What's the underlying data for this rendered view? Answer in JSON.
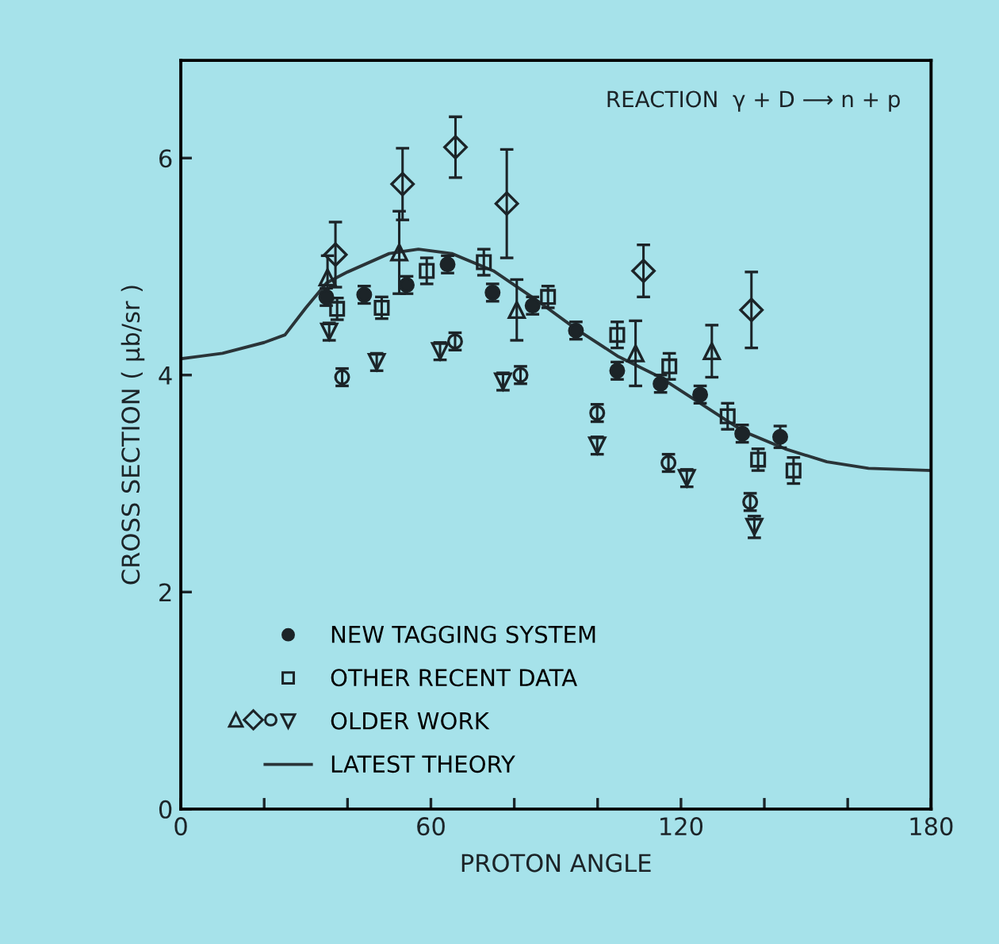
{
  "chart_data": {
    "type": "scatter",
    "xlabel": "PROTON ANGLE",
    "ylabel": "CROSS SECTION ( μb/sr )",
    "xlim": [
      0,
      180
    ],
    "ylim": [
      0,
      6.9
    ],
    "xticks": [
      0,
      {
        "value": 20,
        "label": null
      },
      {
        "value": 40,
        "label": null
      },
      60,
      {
        "value": 80,
        "label": null
      },
      {
        "value": 100,
        "label": null
      },
      120,
      {
        "value": 140,
        "label": null
      },
      {
        "value": 160,
        "label": null
      },
      180
    ],
    "yticks": [
      0,
      2,
      4,
      6
    ],
    "grid": false,
    "legend": "bottom left",
    "annotations": [
      "REACTION  γ + D ⟶ n + p"
    ],
    "series": [
      {
        "name": "NEW TAGGING SYSTEM",
        "marker": "circle",
        "color": "#1c2428",
        "x": [
          34.9,
          44.0,
          54.2,
          64.0,
          74.8,
          84.4,
          94.8,
          104.7,
          115.1,
          124.6,
          134.7,
          143.8
        ],
        "values": [
          4.72,
          4.74,
          4.83,
          5.02,
          4.76,
          4.64,
          4.41,
          4.04,
          3.92,
          3.82,
          3.46,
          3.43
        ],
        "errors": [
          0.08,
          0.08,
          0.08,
          0.08,
          0.08,
          0.08,
          0.08,
          0.08,
          0.08,
          0.08,
          0.08,
          0.1
        ]
      },
      {
        "name": "OTHER RECENT DATA",
        "marker": "square",
        "color": "#1c2428",
        "x": [
          37.5,
          48.2,
          59.0,
          72.7,
          88.1,
          104.7,
          117.2,
          131.2,
          138.5,
          147.0
        ],
        "values": [
          4.61,
          4.62,
          4.96,
          5.04,
          4.72,
          4.37,
          4.08,
          3.62,
          3.22,
          3.12
        ],
        "errors": [
          0.1,
          0.1,
          0.12,
          0.12,
          0.1,
          0.12,
          0.12,
          0.12,
          0.1,
          0.12
        ]
      },
      {
        "marker": "triangle",
        "color": "#1c2428",
        "x": [
          35.2,
          52.4,
          80.6,
          109.1,
          127.4
        ],
        "values": [
          4.9,
          5.13,
          4.6,
          4.2,
          4.22
        ],
        "errors": [
          0.2,
          0.38,
          0.28,
          0.3,
          0.24
        ]
      },
      {
        "marker": "diamond",
        "color": "#1c2428",
        "x": [
          37.1,
          53.2,
          65.9,
          78.2,
          111.0,
          136.9
        ],
        "values": [
          5.11,
          5.76,
          6.1,
          5.58,
          4.96,
          4.6
        ],
        "errors": [
          0.3,
          0.33,
          0.28,
          0.5,
          0.24,
          0.35
        ]
      },
      {
        "marker": "circle",
        "color": "#1c2428",
        "x": [
          38.7,
          65.8,
          81.5,
          99.9,
          117.0,
          136.6
        ],
        "values": [
          3.98,
          4.31,
          4.0,
          3.65,
          3.19,
          2.83
        ],
        "errors": [
          0.08,
          0.08,
          0.08,
          0.08,
          0.08,
          0.08
        ]
      },
      {
        "name": "OLDER WORK",
        "marker": "triangle_down",
        "color": "#1c2428",
        "x": [
          35.6,
          47.0,
          62.2,
          77.3,
          99.9,
          121.4,
          137.6
        ],
        "values": [
          4.4,
          4.12,
          4.22,
          3.94,
          3.35,
          3.05,
          2.6
        ],
        "errors": [
          0.08,
          0.08,
          0.08,
          0.08,
          0.08,
          0.08,
          0.1
        ]
      },
      {
        "name": "LATEST THEORY",
        "type": "line",
        "line_style": "solid",
        "color": "#2a3438",
        "x": [
          0,
          10,
          20,
          25,
          30,
          35,
          40,
          50,
          57,
          65,
          75,
          85,
          95,
          105,
          115,
          125,
          135,
          145,
          155,
          165,
          180
        ],
        "values": [
          4.15,
          4.2,
          4.3,
          4.37,
          4.62,
          4.85,
          4.95,
          5.12,
          5.16,
          5.12,
          4.96,
          4.7,
          4.42,
          4.17,
          3.98,
          3.73,
          3.48,
          3.32,
          3.2,
          3.14,
          3.12
        ]
      }
    ]
  }
}
